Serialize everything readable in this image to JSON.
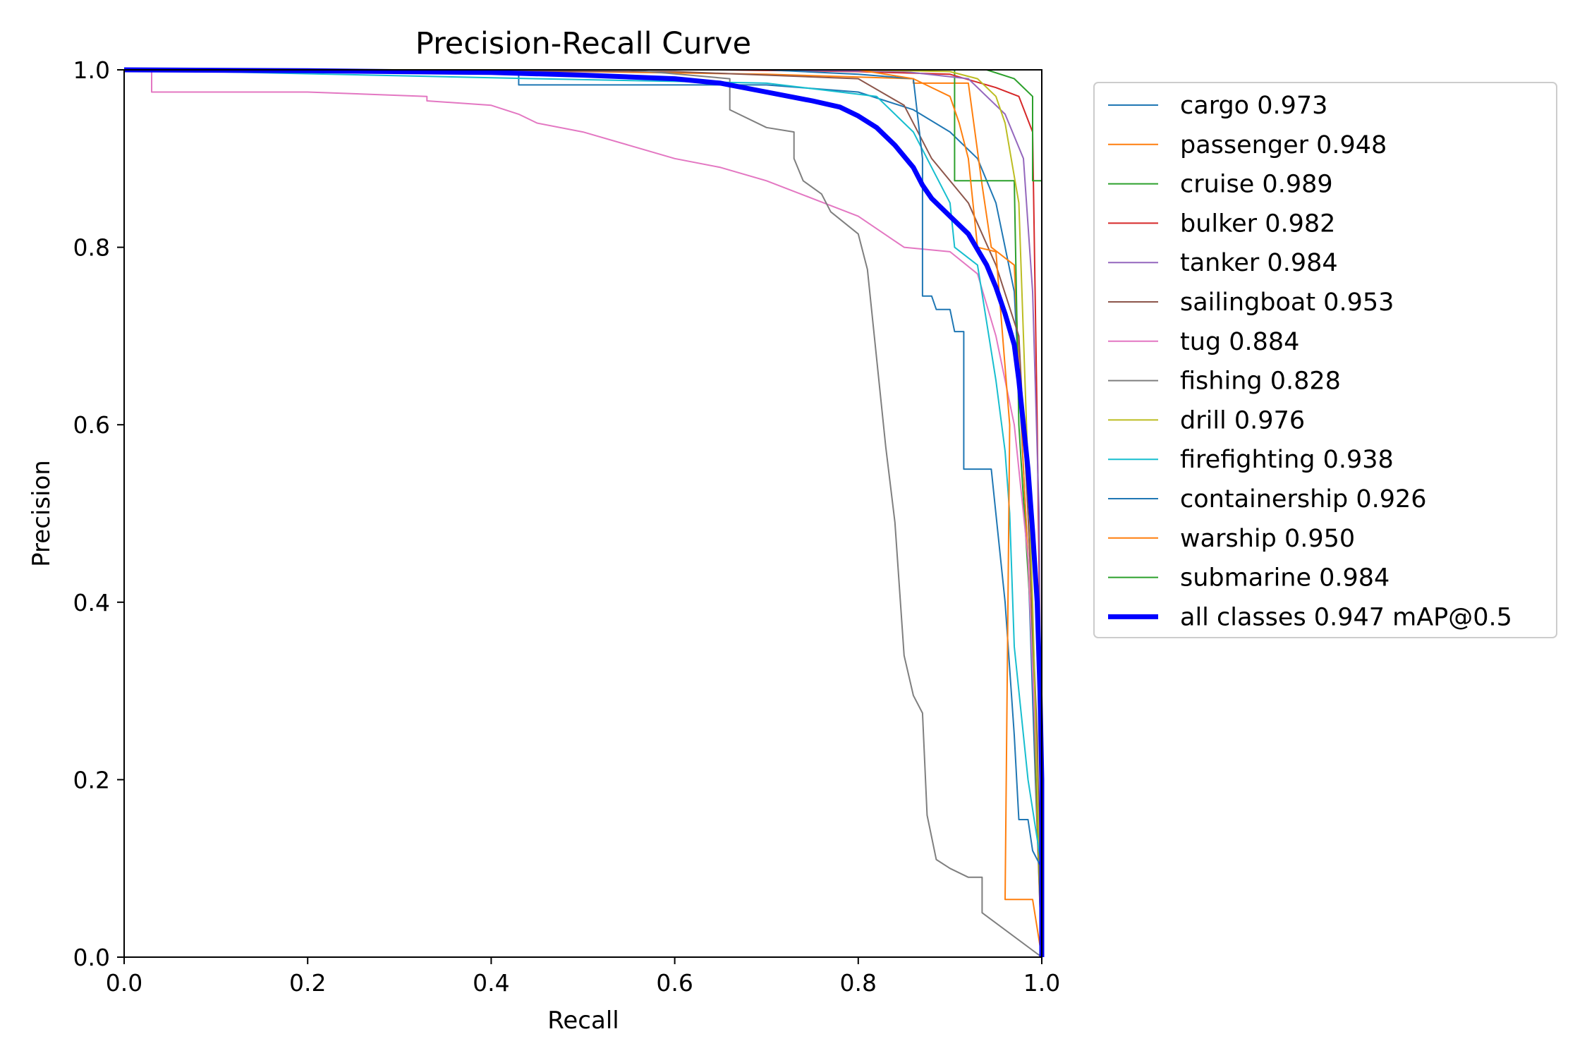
{
  "chart_data": {
    "type": "line",
    "title": "Precision-Recall Curve",
    "xlabel": "Recall",
    "ylabel": "Precision",
    "xlim": [
      0,
      1
    ],
    "ylim": [
      0,
      1
    ],
    "x_ticks": [
      "0.0",
      "0.2",
      "0.4",
      "0.6",
      "0.8",
      "1.0"
    ],
    "y_ticks": [
      "0.0",
      "0.2",
      "0.4",
      "0.6",
      "0.8",
      "1.0"
    ],
    "grid": false,
    "legend_position": "outside-right-top",
    "series": [
      {
        "name": "cargo 0.973",
        "color": "#1f77b4",
        "width": 2,
        "points": [
          [
            0,
            1
          ],
          [
            0.43,
            1
          ],
          [
            0.43,
            0.983
          ],
          [
            0.7,
            0.983
          ],
          [
            0.8,
            0.975
          ],
          [
            0.86,
            0.955
          ],
          [
            0.9,
            0.93
          ],
          [
            0.93,
            0.9
          ],
          [
            0.95,
            0.85
          ],
          [
            0.97,
            0.75
          ],
          [
            0.985,
            0.45
          ],
          [
            0.993,
            0.2
          ],
          [
            1,
            0
          ]
        ]
      },
      {
        "name": "passenger 0.948",
        "color": "#ff7f0e",
        "width": 2,
        "points": [
          [
            0,
            1
          ],
          [
            0.5,
            0.998
          ],
          [
            0.7,
            0.995
          ],
          [
            0.86,
            0.99
          ],
          [
            0.86,
            0.985
          ],
          [
            0.92,
            0.985
          ],
          [
            0.935,
            0.87
          ],
          [
            0.945,
            0.8
          ],
          [
            0.97,
            0.78
          ],
          [
            0.98,
            0.55
          ],
          [
            0.99,
            0.35
          ],
          [
            0.995,
            0.15
          ],
          [
            1,
            0
          ]
        ]
      },
      {
        "name": "cruise 0.989",
        "color": "#2ca02c",
        "width": 2,
        "points": [
          [
            0,
            1
          ],
          [
            0.9,
            1
          ],
          [
            0.905,
            1
          ],
          [
            0.905,
            0.875
          ],
          [
            0.97,
            0.875
          ],
          [
            0.975,
            0.6
          ],
          [
            0.99,
            0.35
          ],
          [
            1,
            0
          ]
        ]
      },
      {
        "name": "bulker 0.982",
        "color": "#d62728",
        "width": 2,
        "points": [
          [
            0,
            1
          ],
          [
            0.65,
            1
          ],
          [
            0.8,
            0.998
          ],
          [
            0.9,
            0.995
          ],
          [
            0.95,
            0.98
          ],
          [
            0.975,
            0.97
          ],
          [
            0.99,
            0.93
          ],
          [
            0.995,
            0.6
          ],
          [
            1,
            0.2
          ],
          [
            1,
            0
          ]
        ]
      },
      {
        "name": "tanker 0.984",
        "color": "#9467bd",
        "width": 2,
        "points": [
          [
            0,
            1
          ],
          [
            0.7,
            1
          ],
          [
            0.85,
            0.998
          ],
          [
            0.92,
            0.99
          ],
          [
            0.96,
            0.95
          ],
          [
            0.98,
            0.9
          ],
          [
            0.99,
            0.75
          ],
          [
            0.997,
            0.5
          ],
          [
            1,
            0.15
          ],
          [
            1,
            0
          ]
        ]
      },
      {
        "name": "sailingboat 0.953",
        "color": "#8c564b",
        "width": 2,
        "points": [
          [
            0,
            1
          ],
          [
            0.6,
            0.998
          ],
          [
            0.8,
            0.99
          ],
          [
            0.85,
            0.96
          ],
          [
            0.88,
            0.9
          ],
          [
            0.92,
            0.85
          ],
          [
            0.95,
            0.78
          ],
          [
            0.975,
            0.7
          ],
          [
            0.985,
            0.5
          ],
          [
            0.995,
            0.25
          ],
          [
            1,
            0
          ]
        ]
      },
      {
        "name": "tug 0.884",
        "color": "#e377c2",
        "width": 2,
        "points": [
          [
            0,
            1
          ],
          [
            0.03,
            1
          ],
          [
            0.03,
            0.975
          ],
          [
            0.2,
            0.975
          ],
          [
            0.33,
            0.97
          ],
          [
            0.33,
            0.965
          ],
          [
            0.4,
            0.96
          ],
          [
            0.43,
            0.95
          ],
          [
            0.45,
            0.94
          ],
          [
            0.5,
            0.93
          ],
          [
            0.55,
            0.915
          ],
          [
            0.6,
            0.9
          ],
          [
            0.65,
            0.89
          ],
          [
            0.7,
            0.875
          ],
          [
            0.75,
            0.855
          ],
          [
            0.8,
            0.835
          ],
          [
            0.85,
            0.8
          ],
          [
            0.9,
            0.795
          ],
          [
            0.93,
            0.77
          ],
          [
            0.95,
            0.7
          ],
          [
            0.97,
            0.6
          ],
          [
            0.985,
            0.45
          ],
          [
            0.995,
            0.2
          ],
          [
            1,
            0.02
          ],
          [
            1,
            0
          ]
        ]
      },
      {
        "name": "fishing 0.828",
        "color": "#7f7f7f",
        "width": 2,
        "points": [
          [
            0,
            1
          ],
          [
            0.55,
            1
          ],
          [
            0.66,
            0.99
          ],
          [
            0.66,
            0.955
          ],
          [
            0.7,
            0.935
          ],
          [
            0.73,
            0.93
          ],
          [
            0.73,
            0.9
          ],
          [
            0.74,
            0.875
          ],
          [
            0.76,
            0.86
          ],
          [
            0.77,
            0.84
          ],
          [
            0.8,
            0.815
          ],
          [
            0.81,
            0.775
          ],
          [
            0.82,
            0.675
          ],
          [
            0.83,
            0.575
          ],
          [
            0.84,
            0.49
          ],
          [
            0.85,
            0.34
          ],
          [
            0.86,
            0.295
          ],
          [
            0.87,
            0.275
          ],
          [
            0.875,
            0.16
          ],
          [
            0.885,
            0.11
          ],
          [
            0.9,
            0.1
          ],
          [
            0.92,
            0.09
          ],
          [
            0.935,
            0.09
          ],
          [
            0.935,
            0.05
          ],
          [
            1,
            0
          ]
        ]
      },
      {
        "name": "drill 0.976",
        "color": "#bcbd22",
        "width": 2,
        "points": [
          [
            0,
            1
          ],
          [
            0.8,
            1
          ],
          [
            0.9,
            0.998
          ],
          [
            0.93,
            0.99
          ],
          [
            0.95,
            0.97
          ],
          [
            0.96,
            0.94
          ],
          [
            0.975,
            0.85
          ],
          [
            0.98,
            0.7
          ],
          [
            0.99,
            0.4
          ],
          [
            0.995,
            0.2
          ],
          [
            1,
            0
          ]
        ]
      },
      {
        "name": "firefighting 0.938",
        "color": "#17becf",
        "width": 2,
        "points": [
          [
            0,
            1
          ],
          [
            0.45,
            0.99
          ],
          [
            0.7,
            0.985
          ],
          [
            0.82,
            0.97
          ],
          [
            0.84,
            0.95
          ],
          [
            0.86,
            0.93
          ],
          [
            0.88,
            0.89
          ],
          [
            0.9,
            0.85
          ],
          [
            0.905,
            0.8
          ],
          [
            0.93,
            0.78
          ],
          [
            0.95,
            0.65
          ],
          [
            0.96,
            0.57
          ],
          [
            0.965,
            0.5
          ],
          [
            0.97,
            0.35
          ],
          [
            0.985,
            0.2
          ],
          [
            1,
            0.1
          ],
          [
            1,
            0
          ]
        ]
      },
      {
        "name": "containership 0.926",
        "color": "#1f77b4",
        "width": 2,
        "points": [
          [
            0,
            1
          ],
          [
            0.7,
            1
          ],
          [
            0.8,
            0.995
          ],
          [
            0.86,
            0.99
          ],
          [
            0.87,
            0.9
          ],
          [
            0.87,
            0.745
          ],
          [
            0.88,
            0.745
          ],
          [
            0.885,
            0.73
          ],
          [
            0.9,
            0.73
          ],
          [
            0.905,
            0.705
          ],
          [
            0.915,
            0.705
          ],
          [
            0.915,
            0.55
          ],
          [
            0.945,
            0.55
          ],
          [
            0.96,
            0.4
          ],
          [
            0.97,
            0.25
          ],
          [
            0.975,
            0.155
          ],
          [
            0.985,
            0.155
          ],
          [
            0.99,
            0.12
          ],
          [
            1,
            0.1
          ],
          [
            1,
            0
          ]
        ]
      },
      {
        "name": "warship 0.950",
        "color": "#ff7f0e",
        "width": 2,
        "points": [
          [
            0,
            1
          ],
          [
            0.8,
            1
          ],
          [
            0.86,
            0.99
          ],
          [
            0.9,
            0.97
          ],
          [
            0.91,
            0.94
          ],
          [
            0.92,
            0.9
          ],
          [
            0.93,
            0.8
          ],
          [
            0.95,
            0.795
          ],
          [
            0.965,
            0.6
          ],
          [
            0.96,
            0.065
          ],
          [
            0.99,
            0.065
          ],
          [
            1,
            0
          ]
        ]
      },
      {
        "name": "submarine 0.984",
        "color": "#2ca02c",
        "width": 2,
        "points": [
          [
            0,
            1
          ],
          [
            0.94,
            1
          ],
          [
            0.97,
            0.99
          ],
          [
            0.99,
            0.97
          ],
          [
            0.99,
            0.875
          ],
          [
            1,
            0.875
          ],
          [
            1,
            0
          ]
        ]
      },
      {
        "name": "all classes 0.947 mAP@0.5",
        "color": "#0000ff",
        "width": 7,
        "points": [
          [
            0,
            1
          ],
          [
            0.2,
            0.999
          ],
          [
            0.4,
            0.997
          ],
          [
            0.5,
            0.994
          ],
          [
            0.6,
            0.99
          ],
          [
            0.65,
            0.985
          ],
          [
            0.7,
            0.975
          ],
          [
            0.75,
            0.965
          ],
          [
            0.78,
            0.958
          ],
          [
            0.8,
            0.948
          ],
          [
            0.82,
            0.935
          ],
          [
            0.84,
            0.915
          ],
          [
            0.86,
            0.89
          ],
          [
            0.87,
            0.87
          ],
          [
            0.88,
            0.855
          ],
          [
            0.9,
            0.835
          ],
          [
            0.92,
            0.815
          ],
          [
            0.94,
            0.78
          ],
          [
            0.95,
            0.755
          ],
          [
            0.96,
            0.725
          ],
          [
            0.97,
            0.69
          ],
          [
            0.975,
            0.65
          ],
          [
            0.98,
            0.6
          ],
          [
            0.985,
            0.55
          ],
          [
            0.99,
            0.48
          ],
          [
            0.995,
            0.4
          ],
          [
            0.998,
            0.3
          ],
          [
            1,
            0.2
          ],
          [
            1,
            0
          ]
        ]
      }
    ]
  }
}
